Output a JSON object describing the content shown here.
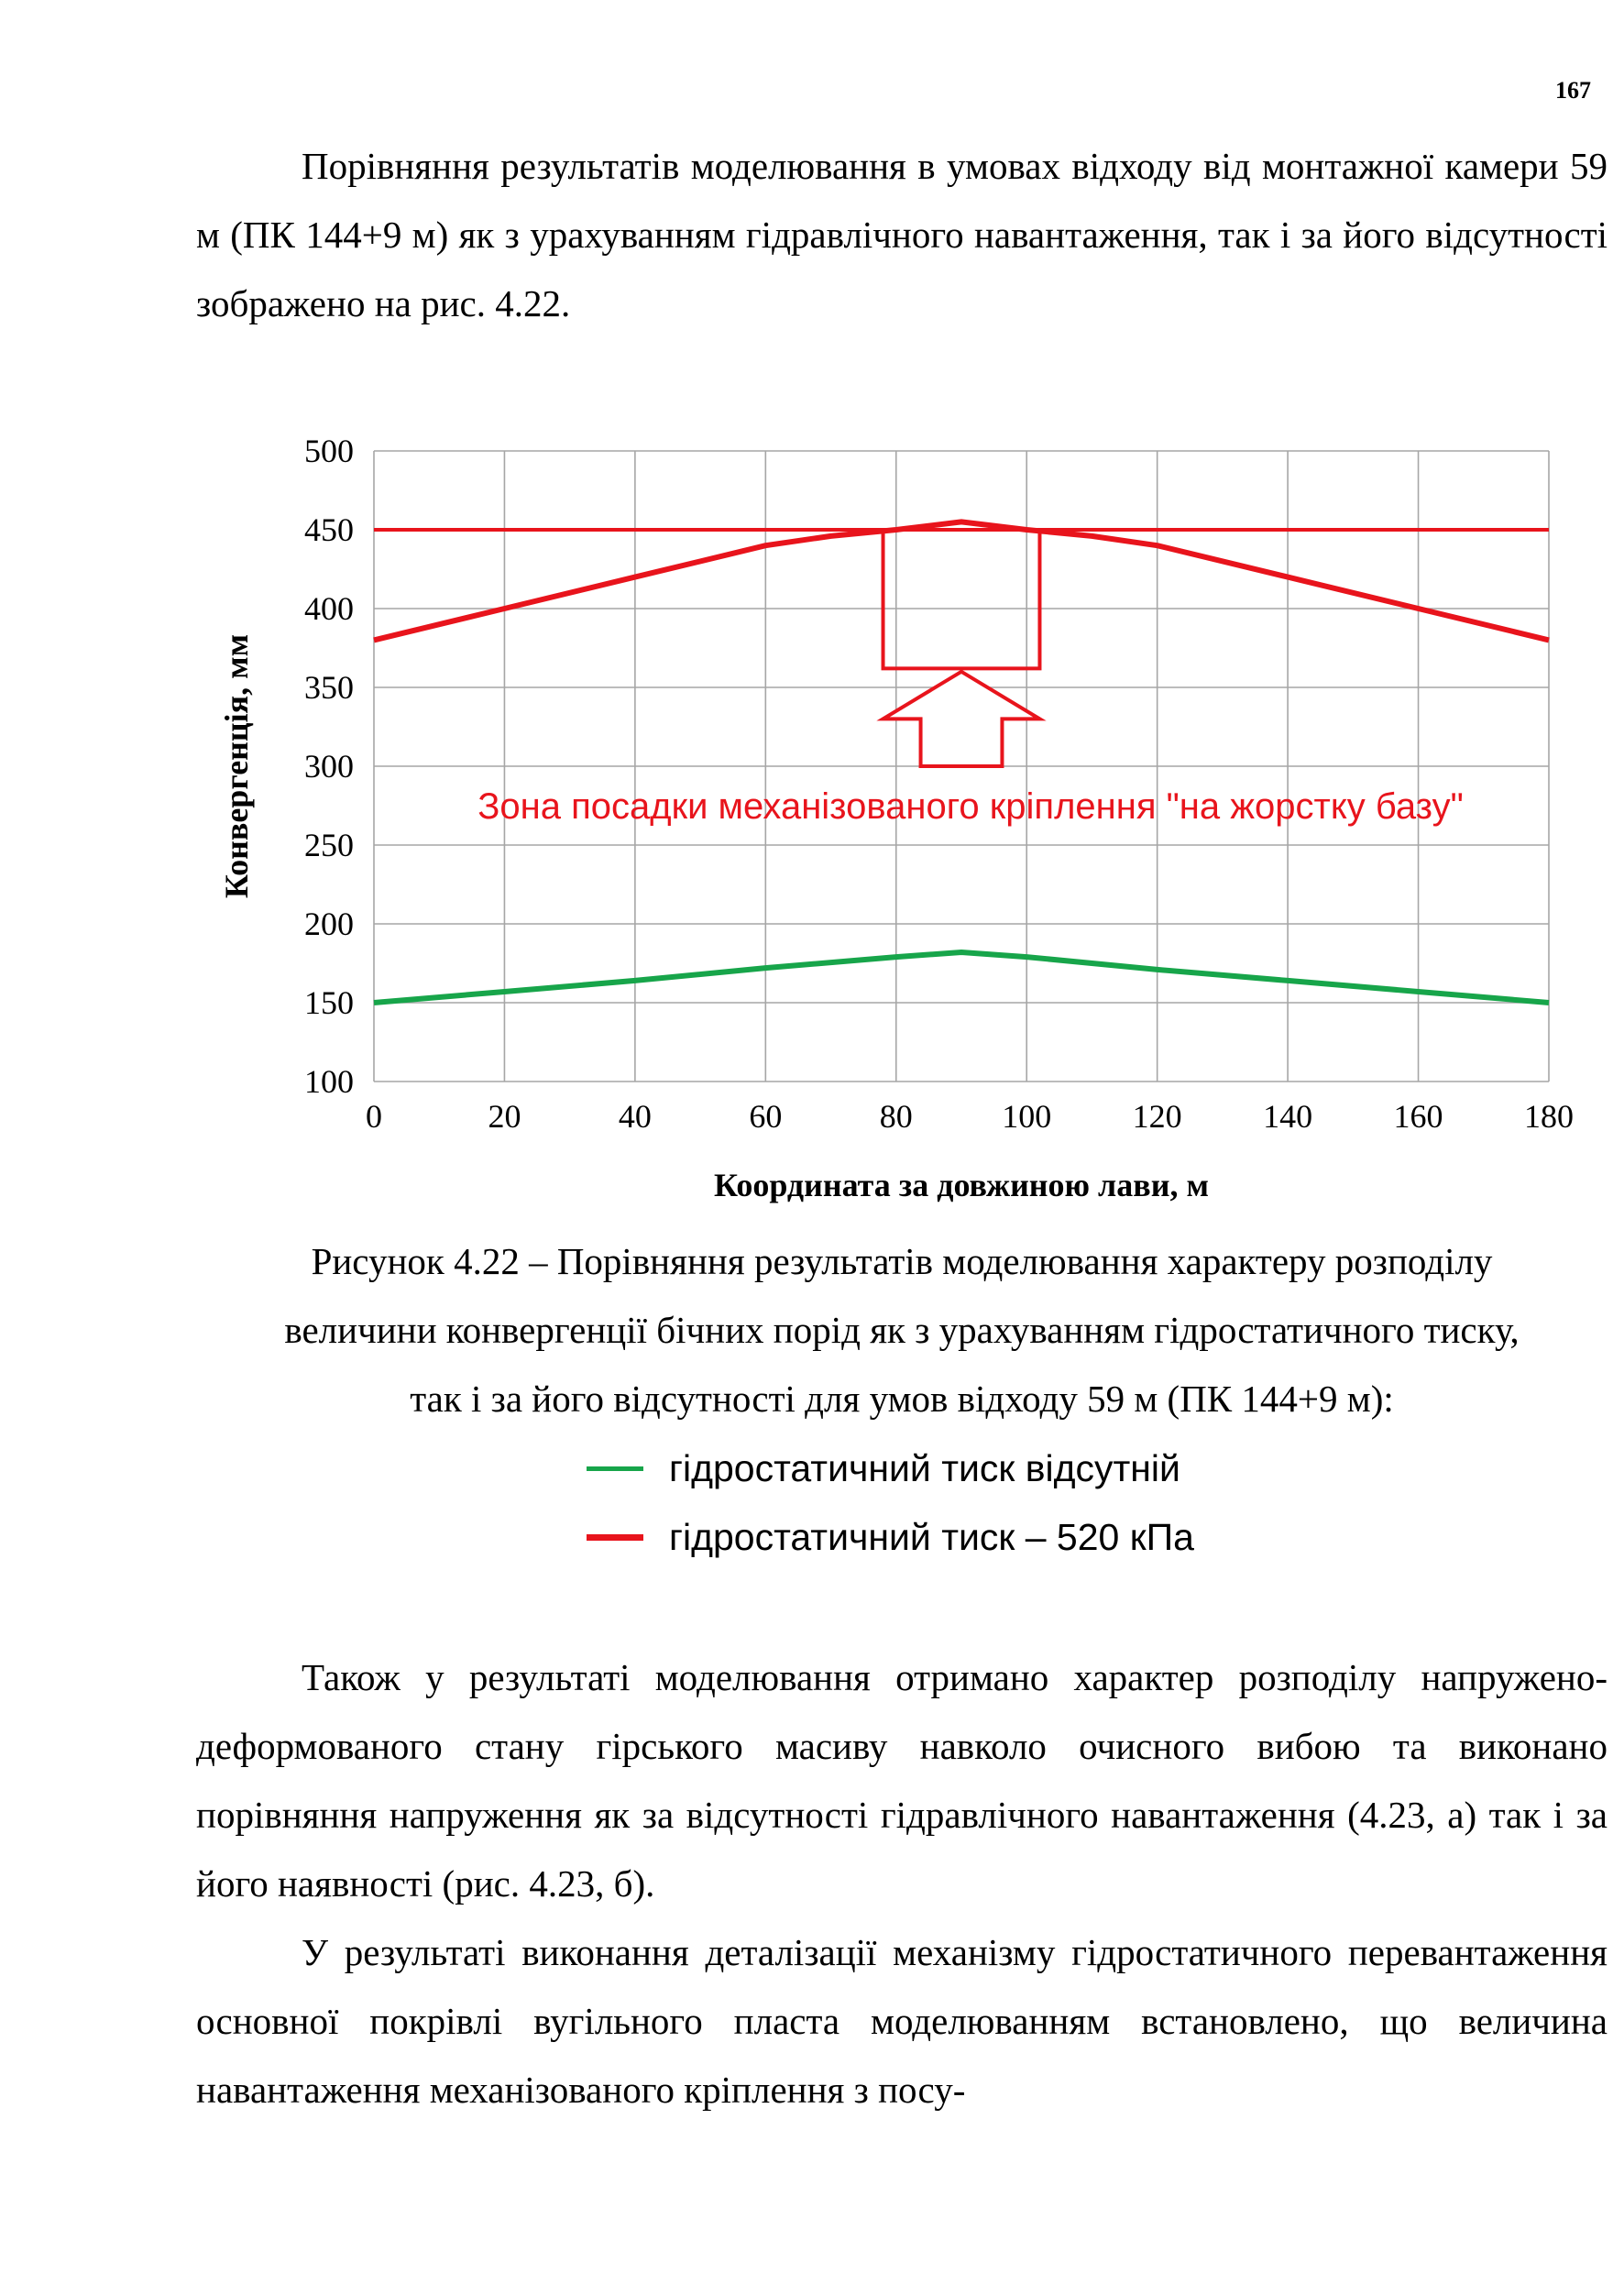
{
  "page": {
    "number": "167"
  },
  "paragraphs": [
    "Порівняння результатів моделювання в умовах відходу від монтажної камери 59 м (ПК 144+9 м) як з урахуванням гідравлічного навантаження, так і за його відсутності зображено на рис. 4.22.",
    "Також у результаті моделювання отримано характер розподілу напружено-деформованого стану гірського масиву навколо очисного вибою та виконано порівняння напруження як за відсутності гідравлічного навантаження (4.23, а) так і за його наявності (рис. 4.23, б).",
    "У результаті виконання деталізації механізму гідростатичного перевантаження основної покрівлі вугільного пласта моделюванням встановлено, що величина навантаження механізованого кріплення з посу-"
  ],
  "figure": {
    "caption_lines": [
      "Рисунок  4.22 – Порівняння результатів моделювання характеру розподілу",
      "величини конвергенції бічних порід як з урахуванням гідростатичного тиску,",
      "так і за його відсутності для умов відходу 59 м (ПК 144+9 м):"
    ],
    "legend": [
      {
        "label": "гідростатичний тиск відсутній",
        "color": "#17a54a"
      },
      {
        "label": "гідростатичний тиск – 520 кПа",
        "color": "#e8141c"
      }
    ]
  },
  "chart_data": {
    "type": "line",
    "xlabel": "Координата за довжиною лави, м",
    "ylabel": "Конвергенція, мм",
    "xlim": [
      0,
      180
    ],
    "ylim": [
      100,
      500
    ],
    "xticks": [
      0,
      20,
      40,
      60,
      80,
      100,
      120,
      140,
      160,
      180
    ],
    "yticks": [
      100,
      150,
      200,
      250,
      300,
      350,
      400,
      450,
      500
    ],
    "grid": true,
    "annotation": "Зона посадки механізованого кріплення \"на жорстку базу\"",
    "threshold": 450,
    "zone": {
      "x_from": 78,
      "x_to": 102,
      "y_from": 362,
      "y_to": 450
    },
    "arrow": {
      "x_from": 78,
      "x_to": 102,
      "y_base": 300,
      "y_tip": 360
    },
    "series": [
      {
        "name": "гідростатичний тиск відсутній",
        "color": "#17a54a",
        "x": [
          0,
          20,
          40,
          60,
          80,
          90,
          100,
          120,
          140,
          160,
          180
        ],
        "y": [
          150,
          157,
          164,
          172,
          179,
          182,
          179,
          171,
          164,
          157,
          150
        ]
      },
      {
        "name": "гідростатичний тиск – 520 кПа",
        "color": "#e8141c",
        "x": [
          0,
          20,
          40,
          60,
          70,
          80,
          90,
          100,
          110,
          120,
          140,
          160,
          180
        ],
        "y": [
          380,
          400,
          420,
          440,
          446,
          450,
          455,
          450,
          446,
          440,
          420,
          400,
          380
        ]
      },
      {
        "name": "",
        "color": "#e8141c",
        "x": [
          0,
          180
        ],
        "y": [
          450,
          450
        ]
      }
    ]
  }
}
